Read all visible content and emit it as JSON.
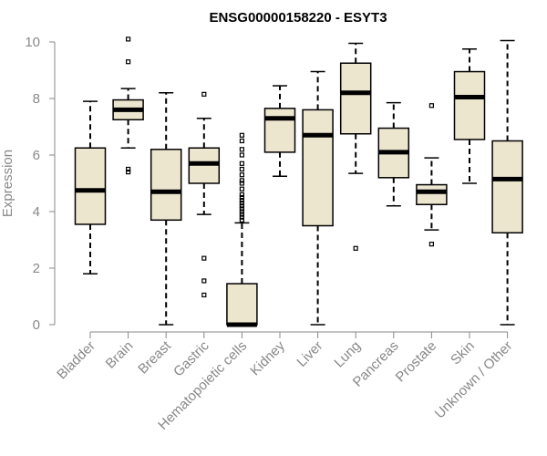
{
  "chart_data": {
    "type": "boxplot",
    "title": "ENSG00000158220 - ESYT3",
    "xlabel": "",
    "ylabel": "Expression",
    "ylim": [
      0,
      10
    ],
    "yticks": [
      0,
      2,
      4,
      6,
      8,
      10
    ],
    "grid": false,
    "colors": {
      "box_fill": "#ede6cf",
      "stroke": "#000000",
      "axis_text": "#888888"
    },
    "categories": [
      "Bladder",
      "Brain",
      "Breast",
      "Gastric",
      "Hematopoietic cells",
      "Kidney",
      "Liver",
      "Lung",
      "Pancreas",
      "Prostate",
      "Skin",
      "Unknown / Other"
    ],
    "boxes": [
      {
        "category": "Bladder",
        "whisker_low": 1.8,
        "q1": 3.55,
        "median": 4.75,
        "q3": 6.25,
        "whisker_high": 7.9,
        "outliers": []
      },
      {
        "category": "Brain",
        "whisker_low": 6.25,
        "q1": 7.25,
        "median": 7.6,
        "q3": 7.95,
        "whisker_high": 8.35,
        "outliers": [
          5.4,
          5.5,
          9.3,
          10.1
        ]
      },
      {
        "category": "Breast",
        "whisker_low": 0.0,
        "q1": 3.7,
        "median": 4.7,
        "q3": 6.2,
        "whisker_high": 8.2,
        "outliers": []
      },
      {
        "category": "Gastric",
        "whisker_low": 3.9,
        "q1": 5.0,
        "median": 5.7,
        "q3": 6.25,
        "whisker_high": 7.3,
        "outliers": [
          1.05,
          1.55,
          2.35,
          8.15
        ]
      },
      {
        "category": "Hematopoietic cells",
        "whisker_low": 0.0,
        "q1": 0.0,
        "median": 0.0,
        "q3": 1.45,
        "whisker_high": 3.6,
        "outliers": [
          3.7,
          3.8,
          3.9,
          4.0,
          4.1,
          4.2,
          4.3,
          4.4,
          4.5,
          4.6,
          4.8,
          5.0,
          5.1,
          5.3,
          5.5,
          5.7,
          6.0,
          6.2,
          6.5,
          6.7
        ]
      },
      {
        "category": "Kidney",
        "whisker_low": 5.25,
        "q1": 6.1,
        "median": 7.3,
        "q3": 7.65,
        "whisker_high": 8.45,
        "outliers": []
      },
      {
        "category": "Liver",
        "whisker_low": 0.0,
        "q1": 3.5,
        "median": 6.7,
        "q3": 7.6,
        "whisker_high": 8.95,
        "outliers": []
      },
      {
        "category": "Lung",
        "whisker_low": 5.35,
        "q1": 6.75,
        "median": 8.2,
        "q3": 9.25,
        "whisker_high": 9.95,
        "outliers": [
          2.7
        ]
      },
      {
        "category": "Pancreas",
        "whisker_low": 4.2,
        "q1": 5.2,
        "median": 6.1,
        "q3": 6.95,
        "whisker_high": 7.85,
        "outliers": []
      },
      {
        "category": "Prostate",
        "whisker_low": 3.35,
        "q1": 4.25,
        "median": 4.7,
        "q3": 4.95,
        "whisker_high": 5.9,
        "outliers": [
          2.85,
          7.75
        ]
      },
      {
        "category": "Skin",
        "whisker_low": 5.0,
        "q1": 6.55,
        "median": 8.05,
        "q3": 8.95,
        "whisker_high": 9.75,
        "outliers": []
      },
      {
        "category": "Unknown / Other",
        "whisker_low": 0.0,
        "q1": 3.25,
        "median": 5.15,
        "q3": 6.5,
        "whisker_high": 10.05,
        "outliers": []
      }
    ]
  }
}
